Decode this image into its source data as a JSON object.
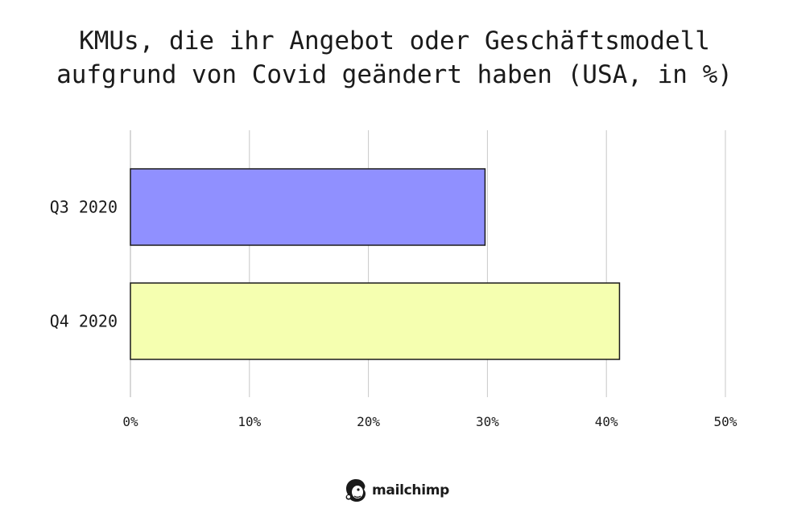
{
  "chart_data": {
    "type": "bar",
    "orientation": "horizontal",
    "title_lines": [
      "KMUs, die ihr Angebot oder Geschäftsmodell",
      "aufgrund von Covid geändert haben (USA, in %)"
    ],
    "categories": [
      "Q3 2020",
      "Q4 2020"
    ],
    "values": [
      29.8,
      41.1
    ],
    "bar_colors": [
      "#9090ff",
      "#f5ffb0"
    ],
    "xlim": [
      0,
      50
    ],
    "xticks": [
      0,
      10,
      20,
      30,
      40,
      50
    ],
    "xtick_labels": [
      "0%",
      "10%",
      "20%",
      "30%",
      "40%",
      "50%"
    ],
    "grid": "vertical",
    "legend": "none"
  },
  "brand": {
    "name": "mailchimp",
    "icon": "mailchimp-freddie-icon"
  }
}
